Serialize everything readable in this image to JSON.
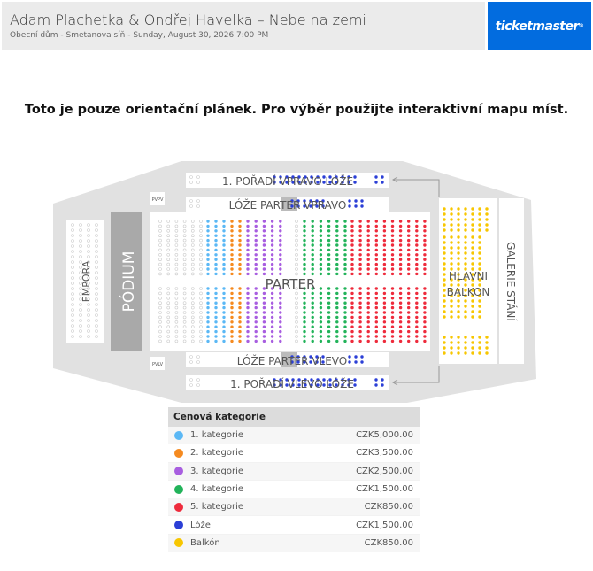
{
  "header": {
    "title": "Adam Plachetka & Ondřej Havelka – Nebe na zemi",
    "subtitle": "Obecní dům - Smetanova síň - Sunday, August 30, 2026 7:00 PM",
    "logo": "ticketmaster"
  },
  "notice": "Toto je pouze orientační plánek. Pro výběr použijte interaktivní mapu míst.",
  "map": {
    "top_row": "1. POŘADÍ VPRAVO LÓŽE",
    "top_box": "LÓŽE PARTER VPRAVO",
    "bottom_box": "LÓŽE PARTER VLEVO",
    "bottom_row": "1. POŘADÍ VLEVO LÓŽE",
    "parter": "PARTER",
    "podium": "PÓDIUM",
    "empora": "EMPORA",
    "balcony_1": "HLAVNI",
    "balcony_2": "BALKON",
    "galerie": "GALERIE STÁNÍ",
    "pvpv": "PVPV",
    "pvlv": "PVLV"
  },
  "legend": {
    "title": "Cenová kategorie",
    "items": [
      {
        "label": "1. kategorie",
        "price": "CZK5,000.00",
        "color": "#5bb8f5"
      },
      {
        "label": "2. kategorie",
        "price": "CZK3,500.00",
        "color": "#f58a1f"
      },
      {
        "label": "3. kategorie",
        "price": "CZK2,500.00",
        "color": "#a85ee0"
      },
      {
        "label": "4. kategorie",
        "price": "CZK1,500.00",
        "color": "#22b35a"
      },
      {
        "label": "5. kategorie",
        "price": "CZK850.00",
        "color": "#ee2b3c"
      },
      {
        "label": "Lóže",
        "price": "CZK1,500.00",
        "color": "#2b3fd6"
      },
      {
        "label": "Balkón",
        "price": "CZK850.00",
        "color": "#f7c600"
      }
    ]
  }
}
